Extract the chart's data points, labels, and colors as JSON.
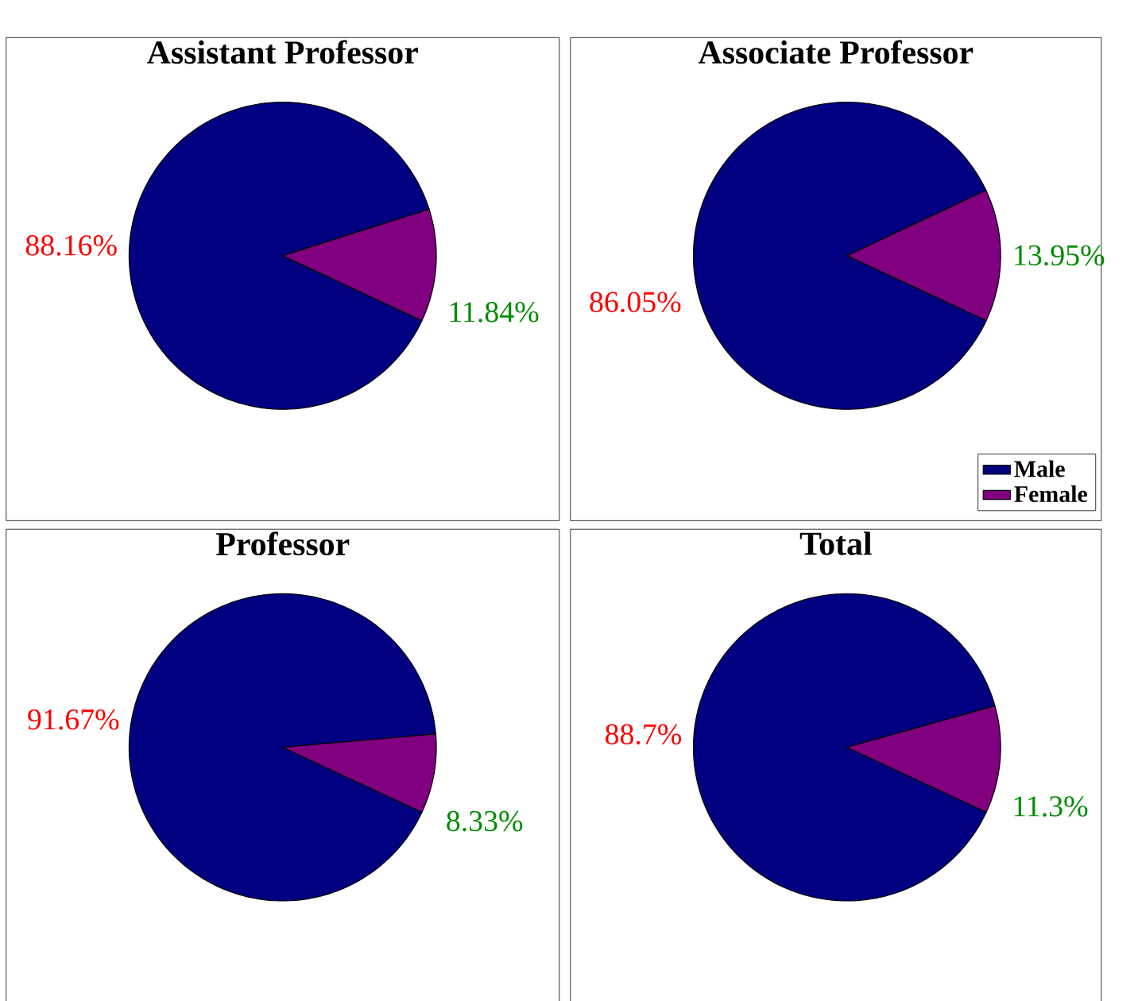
{
  "chart_data": [
    {
      "type": "pie",
      "title": "Assistant Professor",
      "values": [
        88.16,
        11.84
      ],
      "colors": [
        "#000080",
        "#800080"
      ],
      "value_labels": [
        "88.16%",
        "11.84%"
      ]
    },
    {
      "type": "pie",
      "title": "Associate Professor",
      "categories": [
        "Male",
        "Female"
      ],
      "values": [
        86.05,
        13.95
      ],
      "colors": [
        "#000080",
        "#800080"
      ],
      "value_labels": [
        "86.05%",
        "13.95%"
      ],
      "legend": "bottom right"
    },
    {
      "type": "pie",
      "title": "Professor",
      "values": [
        91.67,
        8.33
      ],
      "colors": [
        "#000080",
        "#800080"
      ],
      "value_labels": [
        "91.67%",
        "8.33%"
      ]
    },
    {
      "type": "pie",
      "title": "Total",
      "values": [
        88.7,
        11.3
      ],
      "colors": [
        "#000080",
        "#800080"
      ],
      "value_labels": [
        "88.7%",
        "11.3%"
      ]
    }
  ]
}
